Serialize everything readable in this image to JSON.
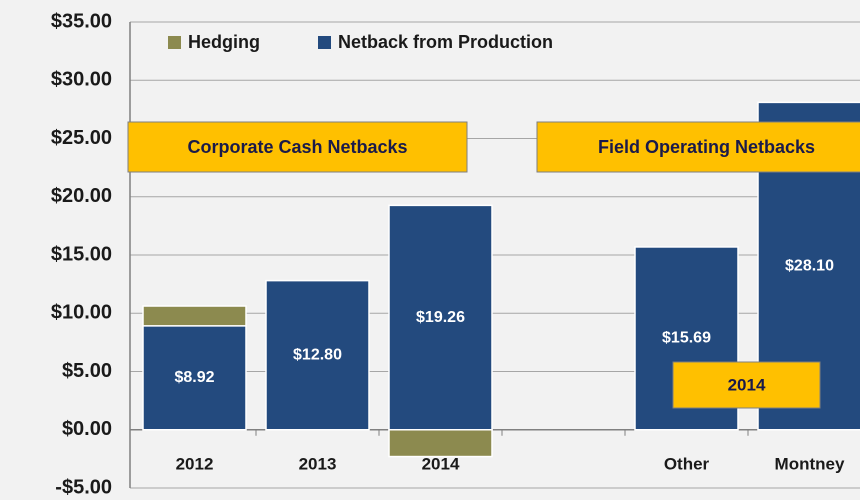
{
  "chart_data": {
    "type": "stacked_bar",
    "categories": [
      "2012",
      "2013",
      "2014",
      null,
      "Other",
      "Montney"
    ],
    "series": [
      {
        "name": "Hedging",
        "color": "#8c8a4f",
        "values": [
          1.7,
          0,
          -2.3,
          null,
          null,
          null
        ]
      },
      {
        "name": "Netback from Production",
        "color": "#234a7e",
        "values": [
          8.92,
          12.8,
          19.26,
          null,
          15.69,
          28.1
        ],
        "value_labels": [
          "$8.92",
          "$12.80",
          "$19.26",
          null,
          "$15.69",
          "$28.10"
        ]
      }
    ],
    "ylim": [
      -5,
      35
    ],
    "yticks": [
      {
        "value": -5,
        "label": "-$5.00"
      },
      {
        "value": 0,
        "label": "$0.00"
      },
      {
        "value": 5,
        "label": "$5.00"
      },
      {
        "value": 10,
        "label": "$10.00"
      },
      {
        "value": 15,
        "label": "$15.00"
      },
      {
        "value": 20,
        "label": "$20.00"
      },
      {
        "value": 25,
        "label": "$25.00"
      },
      {
        "value": 30,
        "label": "$30.00"
      },
      {
        "value": 35,
        "label": "$35.00"
      }
    ],
    "grid": true,
    "legend": "top-left",
    "annotations": [
      "Corporate Cash Netbacks",
      "Field Operating Netbacks",
      "2014"
    ]
  }
}
